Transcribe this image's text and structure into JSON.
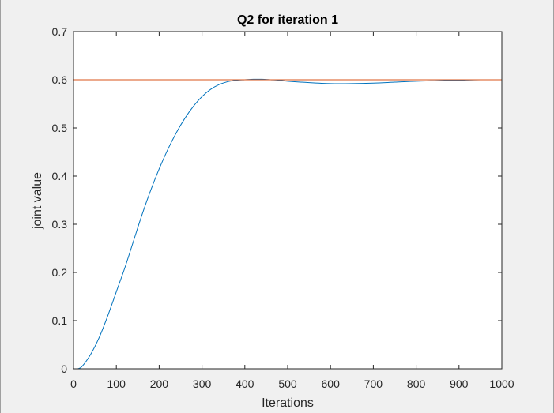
{
  "chart_data": {
    "type": "line",
    "title": "Q2 for iteration 1",
    "xlabel": "Iterations",
    "ylabel": "joint value",
    "xlim": [
      0,
      1000
    ],
    "ylim": [
      0,
      0.7
    ],
    "xticks": [
      0,
      100,
      200,
      300,
      400,
      500,
      600,
      700,
      800,
      900,
      1000
    ],
    "xtick_labels": [
      "0",
      "100",
      "200",
      "300",
      "400",
      "500",
      "600",
      "700",
      "800",
      "900",
      "1000"
    ],
    "yticks": [
      0,
      0.1,
      0.2,
      0.3,
      0.4,
      0.5,
      0.6,
      0.7
    ],
    "ytick_labels": [
      "0",
      "0.1",
      "0.2",
      "0.3",
      "0.4",
      "0.5",
      "0.6",
      "0.7"
    ],
    "grid": false,
    "series": [
      {
        "kind": "curve",
        "color": "#0072bd",
        "x": [
          10,
          20,
          40,
          60,
          80,
          100,
          120,
          140,
          160,
          180,
          200,
          220,
          240,
          260,
          280,
          300,
          320,
          340,
          360,
          380,
          400,
          420,
          440,
          460,
          480,
          500,
          550,
          600,
          650,
          700,
          750,
          800,
          850,
          900,
          950,
          1000
        ],
        "y": [
          0.0,
          0.005,
          0.03,
          0.065,
          0.11,
          0.16,
          0.21,
          0.265,
          0.32,
          0.37,
          0.415,
          0.455,
          0.49,
          0.52,
          0.545,
          0.565,
          0.58,
          0.59,
          0.596,
          0.599,
          0.6,
          0.601,
          0.601,
          0.6,
          0.599,
          0.597,
          0.594,
          0.592,
          0.592,
          0.593,
          0.595,
          0.597,
          0.598,
          0.599,
          0.6,
          0.6
        ]
      },
      {
        "kind": "reference",
        "color": "#d95319",
        "x": [
          0,
          1000
        ],
        "y": [
          0.6,
          0.6
        ]
      }
    ]
  }
}
